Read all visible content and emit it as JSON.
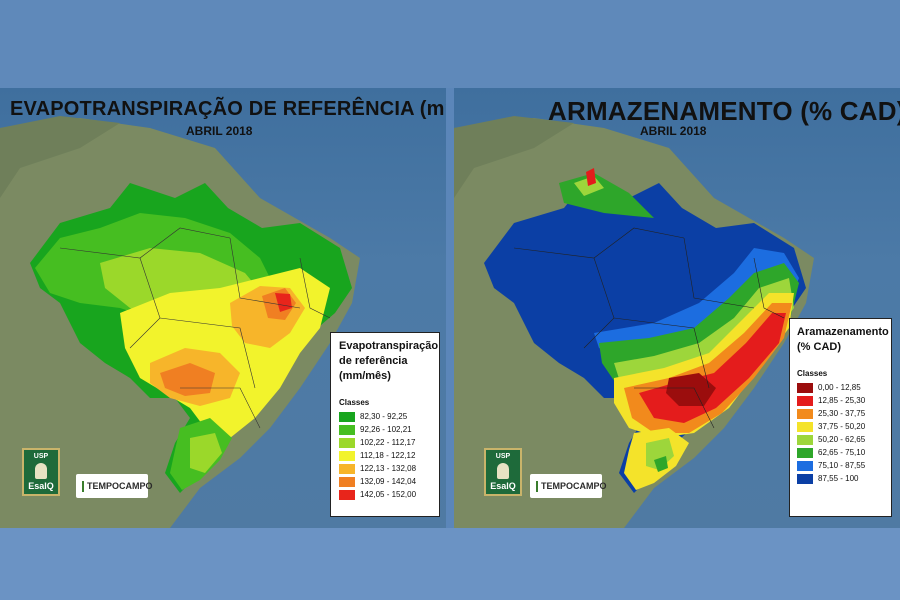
{
  "left_map": {
    "title": "EVAPOTRANSPIRAÇÃO DE REFERÊNCIA (mm/mês)",
    "subtitle": "ABRIL 2018",
    "legend": {
      "title_lines": [
        "Evapotranspiração",
        "de referência",
        "(mm/mês)"
      ],
      "classes_label": "Classes",
      "items": [
        {
          "label": "82,30 - 92,25",
          "color": "#18a51e"
        },
        {
          "label": "92,26 - 102,21",
          "color": "#46be21"
        },
        {
          "label": "102,22 - 112,17",
          "color": "#9bd82a"
        },
        {
          "label": "112,18 - 122,12",
          "color": "#f2f32c"
        },
        {
          "label": "122,13 - 132,08",
          "color": "#f7b52a"
        },
        {
          "label": "132,09 - 142,04",
          "color": "#f07f22"
        },
        {
          "label": "142,05 - 152,00",
          "color": "#e8251b"
        }
      ]
    }
  },
  "right_map": {
    "title": "ARMAZENAMENTO (% CAD)",
    "subtitle": "ABRIL 2018",
    "legend": {
      "title_lines": [
        "Aramazenamento",
        "(% CAD)"
      ],
      "classes_label": "Classes",
      "items": [
        {
          "label": "0,00 - 12,85",
          "color": "#9b0d0d"
        },
        {
          "label": "12,85 - 25,30",
          "color": "#e41c1c"
        },
        {
          "label": "25,30 - 37,75",
          "color": "#f28a1c"
        },
        {
          "label": "37,75 - 50,20",
          "color": "#f4e32a"
        },
        {
          "label": "50,20 - 62,65",
          "color": "#9dd63b"
        },
        {
          "label": "62,65 - 75,10",
          "color": "#2ea62a"
        },
        {
          "label": "75,10 - 87,55",
          "color": "#1c6de0"
        },
        {
          "label": "87,55 - 100",
          "color": "#0b3fa5"
        }
      ]
    }
  },
  "logos": {
    "usp_top": "USP",
    "usp_bottom": "EsalQ",
    "tempocampo": "TEMPOCAMPO"
  },
  "colors": {
    "ocean": "#4d79a6",
    "land": "#7a8a63"
  }
}
